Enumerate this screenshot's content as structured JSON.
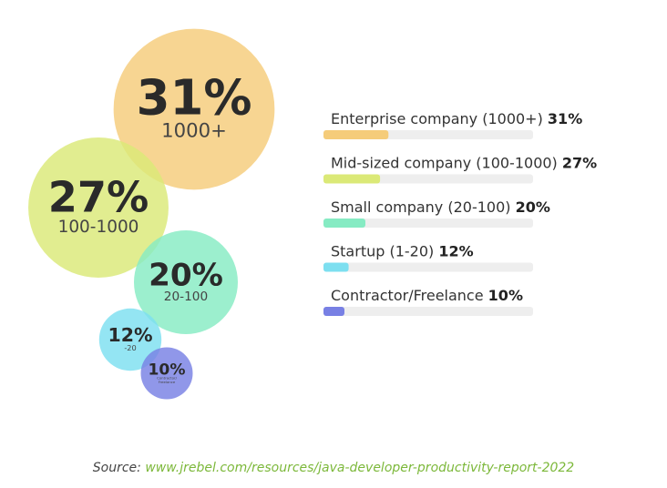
{
  "chart_data": {
    "type": "bubble-bar",
    "categories": [
      "Enterprise company (1000+)",
      "Mid-sized company (100-1000)",
      "Small company (20-100)",
      "Startup (1-20)",
      "Contractor/Freelance"
    ],
    "values": [
      31,
      27,
      20,
      12,
      10
    ],
    "value_labels": [
      "31%",
      "27%",
      "20%",
      "12%",
      "10%"
    ],
    "bubble_labels": [
      [
        "1000+"
      ],
      [
        "100-1000"
      ],
      [
        "20-100"
      ],
      [
        "-20"
      ],
      [
        "Contractor/",
        "Freelance"
      ]
    ],
    "colors": [
      "#f5cc7a",
      "#dbe977",
      "#86ebc3",
      "#7ddff0",
      "#7880e4"
    ],
    "xlim": [
      0,
      100
    ],
    "source_label": "Source:",
    "source_url": "www.jrebel.com/resources/java-developer-productivity-report-2022"
  }
}
